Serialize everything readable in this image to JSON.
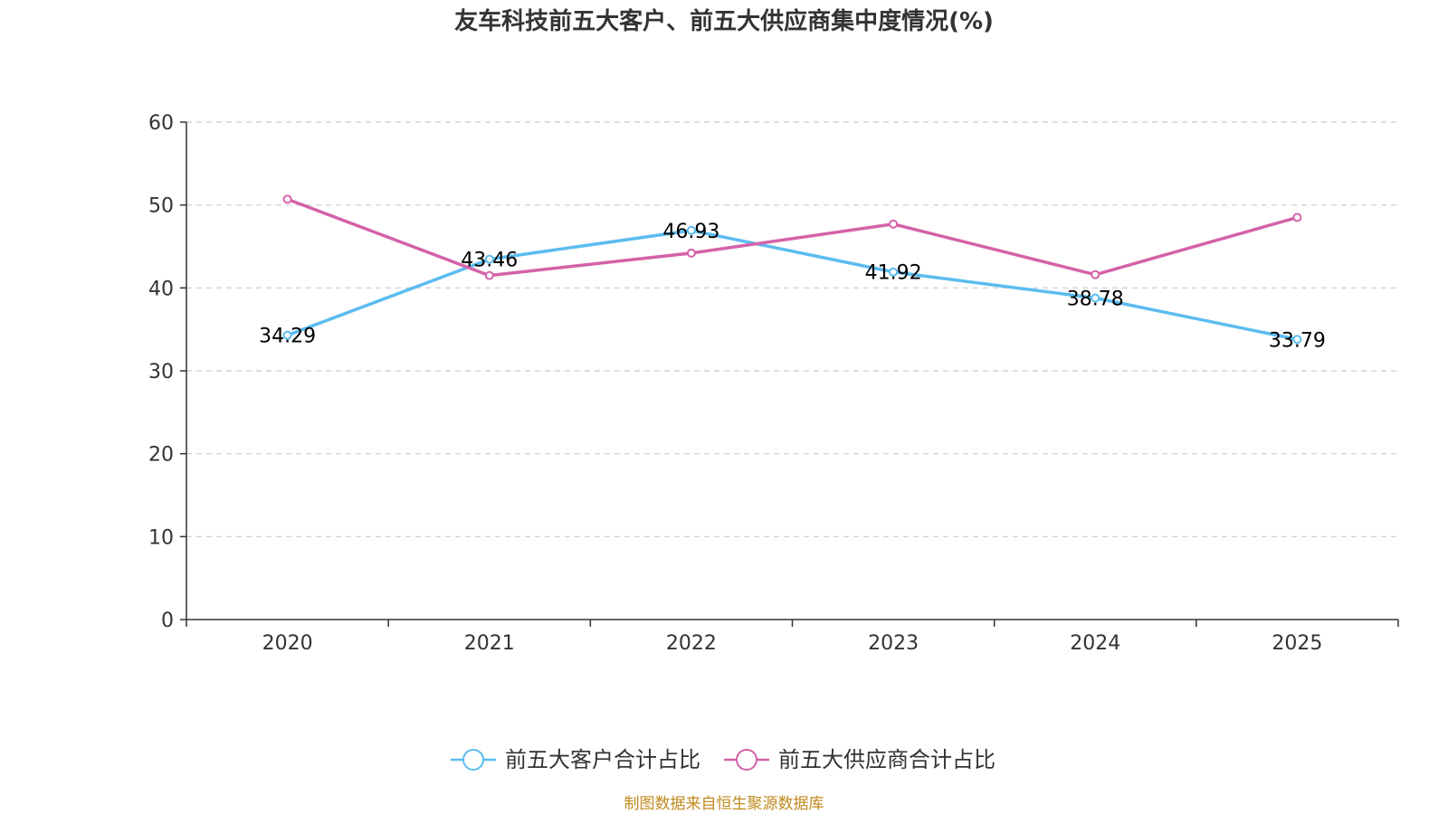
{
  "chart_data": {
    "type": "line",
    "title": "友车科技前五大客户、前五大供应商集中度情况(%)",
    "categories": [
      "2020",
      "2021",
      "2022",
      "2023",
      "2024",
      "2025"
    ],
    "ylim": [
      0,
      60
    ],
    "yticks": [
      "0",
      "10",
      "20",
      "30",
      "40",
      "50",
      "60"
    ],
    "grid": true,
    "legend_position": "bottom",
    "series": [
      {
        "name": "前五大客户合计占比",
        "color": "#5bbcf0",
        "values": [
          34.29,
          43.46,
          46.93,
          41.92,
          38.78,
          33.79
        ],
        "labels": [
          "34.29",
          "43.46",
          "46.93",
          "41.92",
          "38.78",
          "33.79"
        ]
      },
      {
        "name": "前五大供应商合计占比",
        "color": "#d462a8",
        "values": [
          50.7,
          41.5,
          44.2,
          47.7,
          41.6,
          48.5
        ]
      }
    ],
    "source": "制图数据来自恒生聚源数据库"
  }
}
